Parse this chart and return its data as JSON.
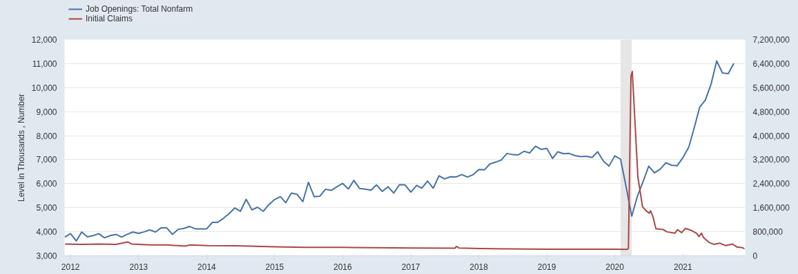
{
  "chart_data": {
    "type": "line",
    "ylabel": "Level in Thousands , Number",
    "xlim": [
      "2011-11-30",
      "2021-12-01"
    ],
    "xticks": [
      "2012",
      "2013",
      "2014",
      "2015",
      "2016",
      "2017",
      "2018",
      "2019",
      "2020",
      "2021"
    ],
    "ylim": [
      3000,
      12000
    ],
    "yticks": [
      {
        "value": 3000,
        "label": "3,000"
      },
      {
        "value": 4000,
        "label": "4,000"
      },
      {
        "value": 5000,
        "label": "5,000"
      },
      {
        "value": 6000,
        "label": "6,000"
      },
      {
        "value": 7000,
        "label": "7,000"
      },
      {
        "value": 8000,
        "label": "8,000"
      },
      {
        "value": 9000,
        "label": "9,000"
      },
      {
        "value": 10000,
        "label": "10,000"
      },
      {
        "value": 11000,
        "label": "11,000"
      },
      {
        "value": 12000,
        "label": "12,000"
      }
    ],
    "y2lim": [
      0,
      7200000
    ],
    "y2ticks": [
      0,
      {
        "value": 800000,
        "label": "800,000"
      },
      {
        "value": 1600000,
        "label": "1,600,000"
      },
      {
        "value": 2400000,
        "label": "2,400,000"
      },
      {
        "value": 3200000,
        "label": "3,200,000"
      },
      {
        "value": 4000000,
        "label": "4,000,000"
      },
      {
        "value": 4800000,
        "label": "4,800,000"
      },
      {
        "value": 5600000,
        "label": "5,600,000"
      },
      {
        "value": 6400000,
        "label": "6,400,000"
      },
      {
        "value": 7200000,
        "label": "7,200,000"
      }
    ],
    "grid": "y",
    "legend": "top left",
    "line_style": "solid",
    "bands": [
      {
        "axis": "x",
        "from": "2020-02-01",
        "to": "2020-04-01",
        "color": "#e6e6e6"
      }
    ],
    "series": [
      {
        "name": "Job Openings: Total Nonfarm",
        "color": "#4572a7",
        "x": [
          "2011-12",
          "2012-01",
          "2012-02",
          "2012-03",
          "2012-04",
          "2012-05",
          "2012-06",
          "2012-07",
          "2012-08",
          "2012-09",
          "2012-10",
          "2012-11",
          "2012-12",
          "2013-01",
          "2013-02",
          "2013-03",
          "2013-04",
          "2013-05",
          "2013-06",
          "2013-07",
          "2013-08",
          "2013-09",
          "2013-10",
          "2013-11",
          "2013-12",
          "2014-01",
          "2014-02",
          "2014-03",
          "2014-04",
          "2014-05",
          "2014-06",
          "2014-07",
          "2014-08",
          "2014-09",
          "2014-10",
          "2014-11",
          "2014-12",
          "2015-01",
          "2015-02",
          "2015-03",
          "2015-04",
          "2015-05",
          "2015-06",
          "2015-07",
          "2015-08",
          "2015-09",
          "2015-10",
          "2015-11",
          "2015-12",
          "2016-01",
          "2016-02",
          "2016-03",
          "2016-04",
          "2016-05",
          "2016-06",
          "2016-07",
          "2016-08",
          "2016-09",
          "2016-10",
          "2016-11",
          "2016-12",
          "2017-01",
          "2017-02",
          "2017-03",
          "2017-04",
          "2017-05",
          "2017-06",
          "2017-07",
          "2017-08",
          "2017-09",
          "2017-10",
          "2017-11",
          "2017-12",
          "2018-01",
          "2018-02",
          "2018-03",
          "2018-04",
          "2018-05",
          "2018-06",
          "2018-07",
          "2018-08",
          "2018-09",
          "2018-10",
          "2018-11",
          "2018-12",
          "2019-01",
          "2019-02",
          "2019-03",
          "2019-04",
          "2019-05",
          "2019-06",
          "2019-07",
          "2019-08",
          "2019-09",
          "2019-10",
          "2019-11",
          "2019-12",
          "2020-01",
          "2020-02",
          "2020-03",
          "2020-04",
          "2020-05",
          "2020-06",
          "2020-07",
          "2020-08",
          "2020-09",
          "2020-10",
          "2020-11",
          "2020-12",
          "2021-01",
          "2021-02",
          "2021-03",
          "2021-04",
          "2021-05",
          "2021-06",
          "2021-07",
          "2021-08",
          "2021-09",
          "2021-10"
        ],
        "values": [
          3780,
          3920,
          3620,
          3990,
          3790,
          3840,
          3920,
          3750,
          3840,
          3890,
          3780,
          3890,
          3990,
          3930,
          4000,
          4080,
          3990,
          4160,
          4160,
          3890,
          4100,
          4140,
          4220,
          4120,
          4120,
          4120,
          4390,
          4390,
          4560,
          4750,
          4990,
          4850,
          5350,
          4910,
          5020,
          4850,
          5130,
          5340,
          5460,
          5210,
          5610,
          5560,
          5250,
          6060,
          5460,
          5480,
          5770,
          5720,
          5870,
          6010,
          5780,
          6140,
          5800,
          5770,
          5730,
          5950,
          5680,
          5870,
          5610,
          5960,
          5950,
          5650,
          5930,
          5810,
          6110,
          5810,
          6330,
          6200,
          6290,
          6280,
          6380,
          6280,
          6370,
          6590,
          6580,
          6820,
          6900,
          6980,
          7260,
          7210,
          7200,
          7350,
          7280,
          7560,
          7430,
          7470,
          7050,
          7330,
          7250,
          7260,
          7170,
          7130,
          7140,
          7090,
          7330,
          6940,
          6730,
          7160,
          7020,
          5900,
          4650,
          5470,
          6090,
          6730,
          6450,
          6610,
          6870,
          6770,
          6750,
          7090,
          7520,
          8290,
          9190,
          9480,
          10150,
          11110,
          10610,
          10580,
          11010
        ]
      },
      {
        "name": "Initial Claims",
        "color": "#aa4643",
        "axis": "y2",
        "x": [
          "2011-12-03",
          "2012-03-03",
          "2012-06-02",
          "2012-09-01",
          "2012-11-03",
          "2012-11-24",
          "2013-03-02",
          "2013-06-01",
          "2013-09-07",
          "2013-10-05",
          "2014-01-04",
          "2014-06-07",
          "2015-01-03",
          "2015-06-06",
          "2016-01-02",
          "2016-06-04",
          "2017-01-07",
          "2017-08-26",
          "2017-09-02",
          "2017-09-16",
          "2018-01-06",
          "2018-06-02",
          "2019-01-05",
          "2019-06-01",
          "2020-01-04",
          "2020-03-07",
          "2020-03-14",
          "2020-03-28",
          "2020-04-04",
          "2020-05-04",
          "2020-05-29",
          "2020-06-20",
          "2020-07-05",
          "2020-07-11",
          "2020-07-23",
          "2020-08-09",
          "2020-09-18",
          "2020-10-06",
          "2020-11-18",
          "2020-12-03",
          "2020-12-25",
          "2021-01-13",
          "2021-02-13",
          "2021-03-15",
          "2021-03-28",
          "2021-04-10",
          "2021-04-22",
          "2021-05-22",
          "2021-06-16",
          "2021-07-17",
          "2021-08-17",
          "2021-09-24",
          "2021-10-18",
          "2021-11-17",
          "2021-11-27"
        ],
        "values": [
          390000,
          380000,
          390000,
          380000,
          460000,
          390000,
          360000,
          360000,
          320000,
          360000,
          340000,
          330000,
          300000,
          280000,
          280000,
          270000,
          260000,
          250000,
          310000,
          260000,
          240000,
          230000,
          220000,
          220000,
          220000,
          210000,
          240000,
          5990000,
          6140000,
          2620000,
          1630000,
          1480000,
          1420000,
          1500000,
          1320000,
          900000,
          870000,
          800000,
          750000,
          870000,
          770000,
          910000,
          850000,
          750000,
          640000,
          750000,
          600000,
          440000,
          380000,
          420000,
          340000,
          390000,
          290000,
          270000,
          230000
        ]
      }
    ]
  }
}
